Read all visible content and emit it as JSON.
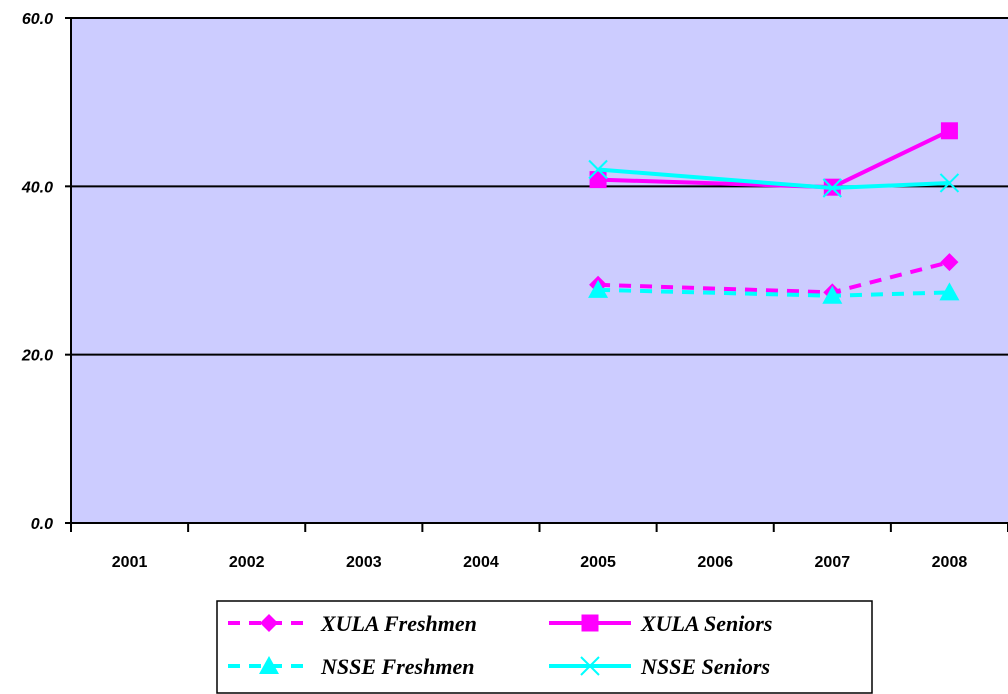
{
  "chart_data": {
    "type": "line",
    "categories": [
      "2001",
      "2002",
      "2003",
      "2004",
      "2005",
      "2006",
      "2007",
      "2008"
    ],
    "ylim": [
      0,
      60
    ],
    "yticks": [
      "0.0",
      "20.0",
      "40.0",
      "60.0"
    ],
    "grid": true,
    "legend_position": "bottom",
    "plot_background": "#ccccff",
    "series": [
      {
        "name": "XULA Freshmen",
        "color": "#ff00ff",
        "dash": true,
        "marker": "diamond",
        "values": [
          null,
          null,
          null,
          null,
          28.3,
          null,
          27.4,
          31.0
        ]
      },
      {
        "name": "XULA Seniors",
        "color": "#ff00ff",
        "dash": false,
        "marker": "square",
        "values": [
          null,
          null,
          null,
          null,
          40.8,
          null,
          39.9,
          46.6
        ]
      },
      {
        "name": "NSSE Freshmen",
        "color": "#00ffff",
        "dash": true,
        "marker": "triangle",
        "values": [
          null,
          null,
          null,
          null,
          27.7,
          null,
          27.0,
          27.4
        ]
      },
      {
        "name": "NSSE Seniors",
        "color": "#00ffff",
        "dash": false,
        "marker": "x",
        "values": [
          null,
          null,
          null,
          null,
          42.0,
          null,
          39.8,
          40.4
        ]
      }
    ]
  }
}
